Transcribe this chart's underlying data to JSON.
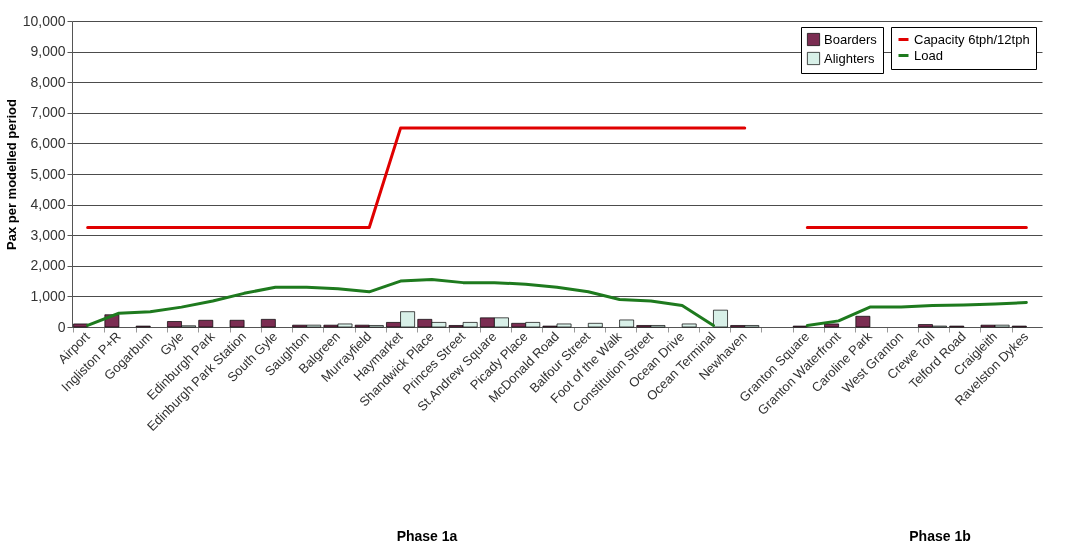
{
  "chart_data": {
    "type": "bar",
    "ylabel": "Pax per modelled period",
    "categories": [
      "Airport",
      "Ingliston P+R",
      "Gogarbum",
      "Gyle",
      "Edinburgh Park",
      "Edinburgh Park Station",
      "South Gyle",
      "Saughton",
      "Balgreen",
      "Murrayfield",
      "Haymarket",
      "Shandwick Place",
      "Princes Street",
      "St.Andrew Square",
      "Picady Place",
      "McDonald Road",
      "Balfour Street",
      "Foot of the Walk",
      "Constitution Street",
      "Ocean Drive",
      "Ocean Terminal",
      "Newhaven",
      null,
      "Granton Square",
      "Granton Waterfront",
      "Caroline Park",
      "West Granton",
      "Crewe Toll",
      "Telford Road",
      "Craigleith",
      "Ravelston Dykes"
    ],
    "series": [
      {
        "name": "Boarders",
        "color": "#7b2d52",
        "values": [
          100,
          400,
          30,
          180,
          220,
          220,
          250,
          60,
          60,
          60,
          150,
          250,
          50,
          300,
          120,
          30,
          0,
          0,
          50,
          0,
          0,
          50,
          null,
          30,
          100,
          350,
          0,
          80,
          30,
          60,
          30
        ]
      },
      {
        "name": "Alighters",
        "color": "#d8f0e8",
        "values": [
          0,
          0,
          0,
          40,
          0,
          0,
          null,
          60,
          100,
          50,
          500,
          150,
          150,
          300,
          150,
          100,
          120,
          230,
          50,
          100,
          550,
          50,
          null,
          0,
          0,
          0,
          0,
          30,
          0,
          60,
          0
        ]
      },
      {
        "name": "Capacity 6tph/12tph",
        "type": "line",
        "color": "#e00000",
        "values": [
          3250,
          3250,
          3250,
          3250,
          3250,
          3250,
          3250,
          3250,
          3250,
          3250,
          6500,
          6500,
          6500,
          6500,
          6500,
          6500,
          6500,
          6500,
          6500,
          6500,
          6500,
          6500,
          null,
          3250,
          3250,
          3250,
          3250,
          3250,
          3250,
          3250,
          3250
        ]
      },
      {
        "name": "Load",
        "type": "line",
        "color": "#1e7a1e",
        "values": [
          50,
          450,
          500,
          650,
          850,
          1100,
          1300,
          1300,
          1250,
          1150,
          1500,
          1550,
          1450,
          1450,
          1400,
          1300,
          1150,
          900,
          850,
          700,
          50,
          null,
          null,
          50,
          200,
          650,
          650,
          700,
          720,
          750,
          800
        ]
      }
    ],
    "ylim": [
      0,
      10000
    ],
    "yticks": [
      0,
      {
        "value": 1000,
        "label": "1,000"
      },
      {
        "value": 2000,
        "label": "2,000"
      },
      {
        "value": 3000,
        "label": "3,000"
      },
      {
        "value": 4000,
        "label": "4,000"
      },
      {
        "value": 5000,
        "label": "5,000"
      },
      {
        "value": 6000,
        "label": "6,000"
      },
      {
        "value": 7000,
        "label": "7,000"
      },
      {
        "value": 8000,
        "label": "8,000"
      },
      {
        "value": 9000,
        "label": "9,000"
      },
      {
        "value": 10000,
        "label": "10,000"
      }
    ],
    "grid": "y",
    "legend": "top right",
    "annotations": [
      "Phase 1a",
      "Phase 1b"
    ]
  }
}
